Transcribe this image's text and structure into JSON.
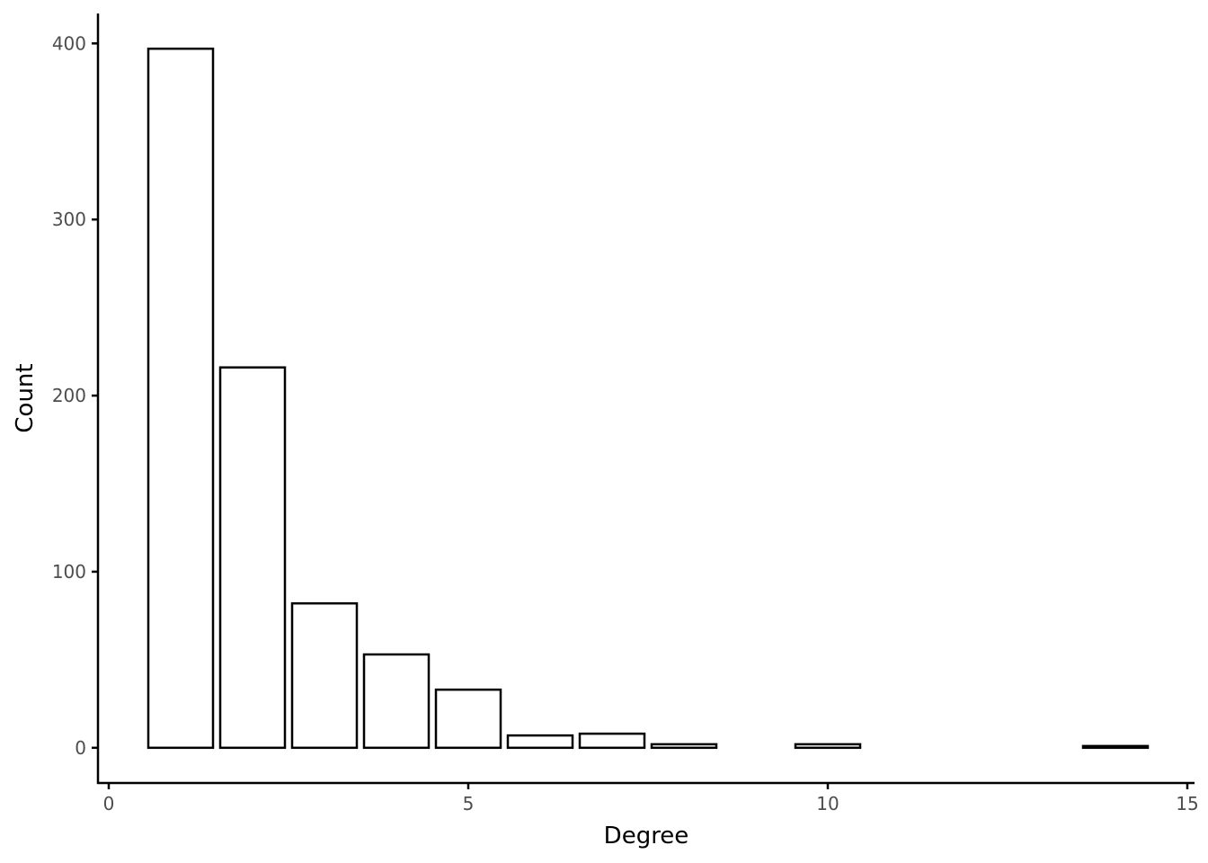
{
  "chart_data": {
    "type": "bar",
    "title": "",
    "xlabel": "Degree",
    "ylabel": "Count",
    "x": [
      1,
      2,
      3,
      4,
      5,
      6,
      7,
      8,
      10,
      14
    ],
    "values": [
      397,
      216,
      82,
      53,
      33,
      7,
      8,
      2,
      2,
      1
    ],
    "xlim": [
      -0.15,
      15.1
    ],
    "ylim": [
      -20,
      417
    ],
    "xticks": [
      0,
      5,
      10,
      15
    ],
    "xtick_labels": [
      "0",
      "5",
      "10",
      "15"
    ],
    "yticks": [
      0,
      100,
      200,
      300,
      400
    ],
    "ytick_labels": [
      "0",
      "100",
      "200",
      "300",
      "400"
    ],
    "bar_width": 0.9,
    "grid": false,
    "legend": "none",
    "colors": {
      "bar_fill": "#ffffff",
      "bar_stroke": "#000000",
      "tick_text": "#4d4d4d"
    }
  }
}
